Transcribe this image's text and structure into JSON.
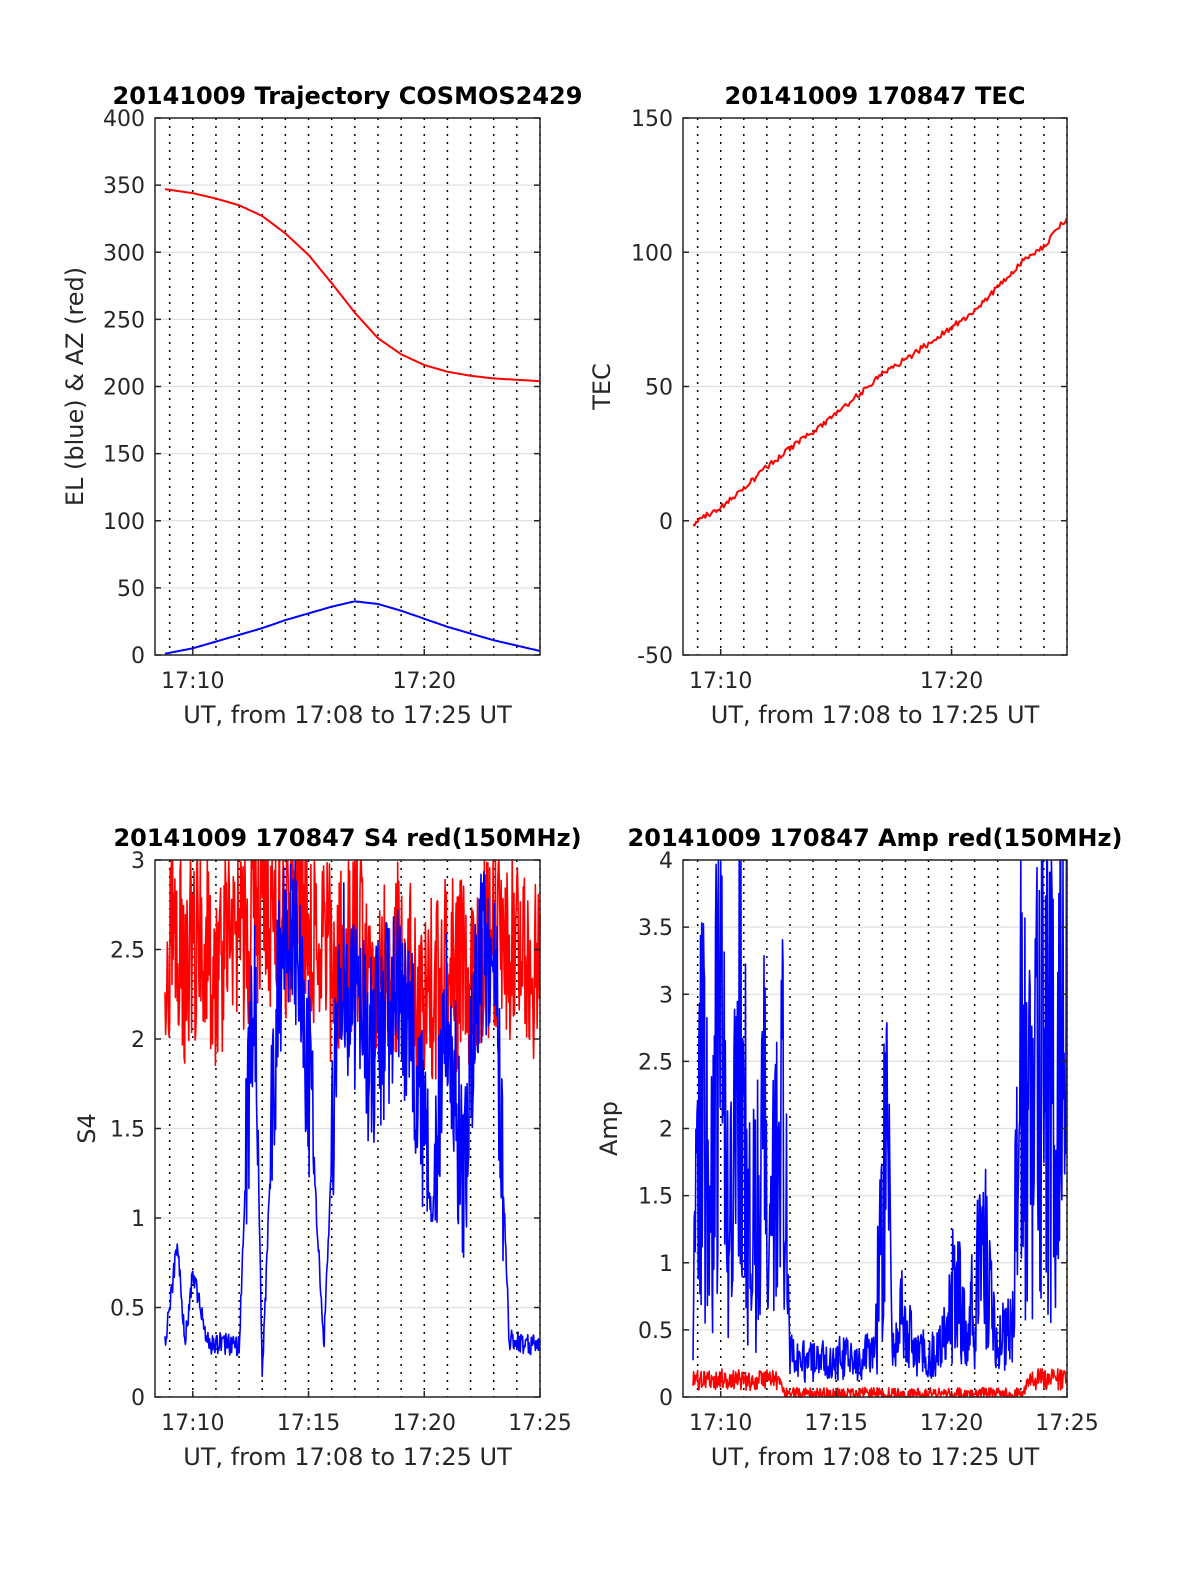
{
  "chart_data": [
    {
      "type": "line",
      "title": "20141009 Trajectory COSMOS2429",
      "xlabel": "UT, from 17:08 to 17:25 UT",
      "ylabel": "EL (blue) & AZ (red)",
      "x_unit": "minutes",
      "xlim": [
        "17:08:22",
        "17:25:00"
      ],
      "ylim": [
        0,
        400
      ],
      "yticks": [
        0,
        50,
        100,
        150,
        200,
        250,
        300,
        350,
        400
      ],
      "xticks": [
        {
          "t": "17:10:00",
          "label": "17:10"
        },
        {
          "t": "17:20:00",
          "label": "17:20"
        }
      ],
      "grid": "dotted vertical every minute, light horizontal",
      "series": [
        {
          "color": "#ff0000",
          "x": [
            "17:08:48",
            "17:10:00",
            "17:11:00",
            "17:12:00",
            "17:13:00",
            "17:14:00",
            "17:15:00",
            "17:16:00",
            "17:17:00",
            "17:18:00",
            "17:19:00",
            "17:20:00",
            "17:21:00",
            "17:22:00",
            "17:23:00",
            "17:24:00",
            "17:25:00"
          ],
          "y": [
            347,
            344,
            340,
            335,
            327,
            314,
            298,
            277,
            255,
            236,
            224,
            216,
            211,
            208,
            206,
            205,
            204
          ]
        },
        {
          "color": "#0000ff",
          "x": [
            "17:08:48",
            "17:10:00",
            "17:11:00",
            "17:12:00",
            "17:13:00",
            "17:14:00",
            "17:15:00",
            "17:16:00",
            "17:17:00",
            "17:18:00",
            "17:19:00",
            "17:20:00",
            "17:21:00",
            "17:22:00",
            "17:23:00",
            "17:24:00",
            "17:25:00"
          ],
          "y": [
            1,
            5,
            10,
            15,
            20,
            26,
            31,
            36,
            40,
            38,
            33,
            27,
            21,
            16,
            11,
            7,
            3
          ]
        }
      ]
    },
    {
      "type": "line",
      "title": "20141009 170847 TEC",
      "xlabel": "UT, from 17:08 to 17:25 UT",
      "ylabel": "TEC",
      "x_unit": "minutes",
      "xlim": [
        "17:08:22",
        "17:25:00"
      ],
      "ylim": [
        -50,
        150
      ],
      "yticks": [
        -50,
        0,
        50,
        100,
        150
      ],
      "xticks": [
        {
          "t": "17:10:00",
          "label": "17:10"
        },
        {
          "t": "17:20:00",
          "label": "17:20"
        }
      ],
      "grid": "dotted vertical every minute, light horizontal",
      "series": [
        {
          "color": "#ff0000",
          "x": [
            "17:08:48",
            "17:09:00",
            "17:10:00",
            "17:11:00",
            "17:12:00",
            "17:13:00",
            "17:14:00",
            "17:15:00",
            "17:16:00",
            "17:17:00",
            "17:18:00",
            "17:19:00",
            "17:20:00",
            "17:21:00",
            "17:22:00",
            "17:23:00",
            "17:24:00",
            "17:25:00"
          ],
          "y": [
            -1,
            0,
            5,
            12,
            20,
            27,
            33,
            40,
            47,
            55,
            60,
            66,
            72,
            78,
            87,
            96,
            102,
            113
          ]
        }
      ]
    },
    {
      "type": "line",
      "title": "20141009 170847 S4 red(150MHz)",
      "xlabel": "UT, from 17:08 to 17:25 UT",
      "ylabel": "S4",
      "x_unit": "minutes",
      "xlim": [
        "17:08:22",
        "17:25:00"
      ],
      "ylim": [
        0,
        3
      ],
      "yticks": [
        0,
        0.5,
        1,
        1.5,
        2,
        2.5,
        3
      ],
      "xticks": [
        {
          "t": "17:10:00",
          "label": "17:10"
        },
        {
          "t": "17:15:00",
          "label": "17:15"
        },
        {
          "t": "17:20:00",
          "label": "17:20"
        },
        {
          "t": "17:25:00",
          "label": "17:25"
        }
      ],
      "grid": "dotted vertical every minute, light horizontal",
      "series": [
        {
          "color": "#ff0000",
          "x": [
            "17:08:48",
            "17:09:10",
            "17:09:40",
            "17:10:20",
            "17:11:00",
            "17:11:40",
            "17:12:20",
            "17:13:00",
            "17:14:00",
            "17:15:00",
            "17:16:00",
            "17:17:00",
            "17:18:00",
            "17:19:00",
            "17:20:00",
            "17:21:00",
            "17:22:00",
            "17:23:00",
            "17:24:00",
            "17:24:40",
            "17:25:00"
          ],
          "y": [
            2.2,
            2.7,
            2.4,
            2.6,
            2.3,
            2.7,
            2.5,
            2.8,
            2.6,
            2.7,
            2.4,
            2.6,
            2.3,
            2.5,
            2.2,
            2.4,
            2.3,
            2.6,
            2.5,
            2.4,
            2.6
          ]
        },
        {
          "color": "#0000ff",
          "x": [
            "17:08:48",
            "17:09:20",
            "17:09:40",
            "17:10:00",
            "17:10:40",
            "17:11:20",
            "17:12:00",
            "17:12:40",
            "17:13:00",
            "17:13:40",
            "17:14:20",
            "17:15:00",
            "17:15:40",
            "17:16:20",
            "17:17:00",
            "17:17:40",
            "17:18:20",
            "17:19:00",
            "17:19:40",
            "17:20:20",
            "17:21:00",
            "17:21:40",
            "17:22:20",
            "17:23:00",
            "17:23:40",
            "17:24:20",
            "17:25:00"
          ],
          "y": [
            0.3,
            0.85,
            0.3,
            0.7,
            0.3,
            0.3,
            0.28,
            2.5,
            0.1,
            2.3,
            2.6,
            1.8,
            0.3,
            2.4,
            2.2,
            1.9,
            2.1,
            2.3,
            1.8,
            1.0,
            2.2,
            1.2,
            2.4,
            2.6,
            0.32,
            0.3,
            0.28
          ]
        }
      ]
    },
    {
      "type": "line",
      "title": "20141009 170847 Amp red(150MHz)",
      "xlabel": "UT, from 17:08 to 17:25 UT",
      "ylabel": "Amp",
      "x_unit": "minutes",
      "xlim": [
        "17:08:22",
        "17:25:00"
      ],
      "ylim": [
        0,
        4
      ],
      "yticks": [
        0,
        0.5,
        1,
        1.5,
        2,
        2.5,
        3,
        3.5,
        4
      ],
      "xticks": [
        {
          "t": "17:10:00",
          "label": "17:10"
        },
        {
          "t": "17:15:00",
          "label": "17:15"
        },
        {
          "t": "17:20:00",
          "label": "17:20"
        },
        {
          "t": "17:25:00",
          "label": "17:25"
        }
      ],
      "grid": "dotted vertical every minute, light horizontal",
      "series": [
        {
          "color": "#ff0000",
          "x": [
            "17:08:48",
            "17:09:30",
            "17:10:30",
            "17:11:30",
            "17:12:30",
            "17:12:45",
            "17:23:00",
            "17:23:20",
            "17:24:00",
            "17:25:00"
          ],
          "y": [
            0.12,
            0.14,
            0.13,
            0.12,
            0.14,
            0.02,
            0.02,
            0.12,
            0.14,
            0.13
          ]
        },
        {
          "color": "#0000ff",
          "x": [
            "17:08:48",
            "17:09:10",
            "17:09:30",
            "17:10:00",
            "17:10:20",
            "17:10:50",
            "17:11:20",
            "17:11:50",
            "17:12:10",
            "17:12:40",
            "17:13:00",
            "17:14:00",
            "17:15:00",
            "17:16:00",
            "17:16:40",
            "17:17:10",
            "17:17:30",
            "17:17:50",
            "17:18:30",
            "17:19:30",
            "17:20:10",
            "17:20:40",
            "17:21:20",
            "17:22:00",
            "17:22:40",
            "17:23:00",
            "17:23:30",
            "17:24:00",
            "17:24:30",
            "17:25:00"
          ],
          "y": [
            0.5,
            2.3,
            1.4,
            2.9,
            1.5,
            2.4,
            1.2,
            2.0,
            1.0,
            2.6,
            0.3,
            0.25,
            0.3,
            0.25,
            0.35,
            1.95,
            0.3,
            0.6,
            0.3,
            0.35,
            0.8,
            0.4,
            1.1,
            0.4,
            0.6,
            2.6,
            1.6,
            3.3,
            1.8,
            3.5
          ]
        }
      ]
    }
  ]
}
